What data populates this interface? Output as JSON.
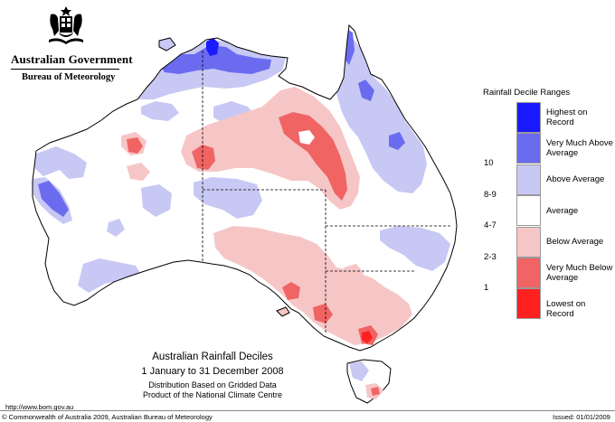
{
  "branding": {
    "government": "Australian Government",
    "bureau": "Bureau of Meteorology"
  },
  "legend": {
    "title": "Rainfall Decile Ranges",
    "categories": [
      {
        "label": "Highest on Record",
        "range": "",
        "color": "#1a1aff"
      },
      {
        "label": "Very Much Above Average",
        "range": "10",
        "color": "#6b6bf0"
      },
      {
        "label": "Above Average",
        "range": "8-9",
        "color": "#c8c8f4"
      },
      {
        "label": "Average",
        "range": "4-7",
        "color": "#ffffff"
      },
      {
        "label": "Below Average",
        "range": "2-3",
        "color": "#f6c6c6"
      },
      {
        "label": "Very Much Below Average",
        "range": "1",
        "color": "#f06464"
      },
      {
        "label": "Lowest on Record",
        "range": "",
        "color": "#ff2020"
      }
    ]
  },
  "map": {
    "title": "Australian Rainfall Deciles",
    "period": "1 January to 31 December 2008",
    "subtitle_line1": "Distribution Based on Gridded Data",
    "subtitle_line2": "Product of the National Climate Centre"
  },
  "footer": {
    "url": "http://www.bom.gov.au",
    "copyright": "© Commonwealth of Australia 2009, Australian Bureau of Meteorology",
    "issued": "Issued: 01/01/2009"
  }
}
